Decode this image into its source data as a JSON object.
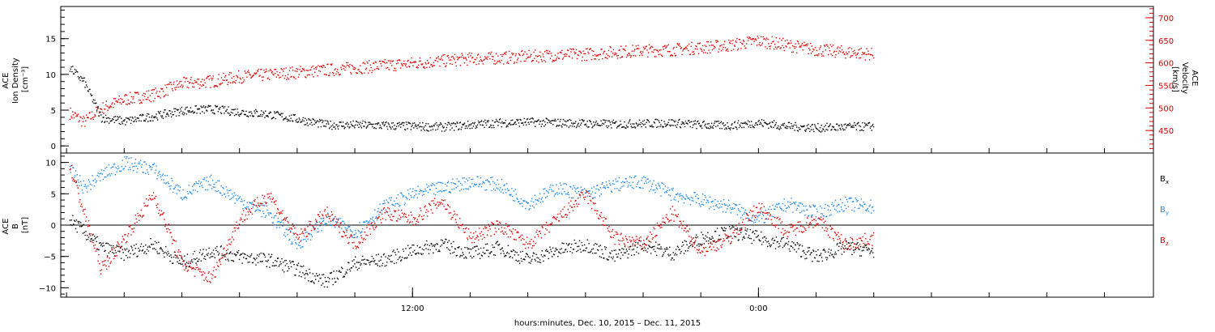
{
  "chart_data": [
    {
      "type": "scatter",
      "panel": "top",
      "left_axis": {
        "label_lines": [
          "ACE",
          "Ion Density",
          "[cm⁻³]"
        ],
        "range": [
          -1,
          19.5
        ],
        "major_ticks": [
          0,
          5,
          10,
          15
        ],
        "tick_labels": [
          "0",
          "5",
          "10",
          "15"
        ],
        "color": "#000000"
      },
      "right_axis": {
        "label_lines": [
          "ACE",
          "Velocity",
          "[km/s]"
        ],
        "range": [
          400,
          725
        ],
        "major_ticks": [
          450,
          500,
          550,
          600,
          650,
          700
        ],
        "tick_labels": [
          "450",
          "500",
          "550",
          "600",
          "650",
          "700"
        ],
        "color": "#dd0000"
      },
      "series": [
        {
          "axis": "left",
          "color": "#000000",
          "x_hours": [
            0.1,
            0.6,
            1.2,
            2.0,
            3.0,
            4.0,
            5.0,
            6.0,
            7.0,
            8.0,
            9.0,
            10.0,
            11.0,
            12.0,
            13.0,
            14.0,
            15.0,
            16.0,
            17.0,
            18.0,
            19.0,
            20.0,
            21.0,
            22.0,
            23.0,
            24.0,
            25.0,
            26.0,
            27.0,
            28.0
          ],
          "values": [
            11,
            9,
            4,
            3.5,
            4.2,
            5.0,
            5.2,
            4.8,
            4.5,
            3.8,
            3.0,
            3.0,
            2.9,
            2.8,
            2.7,
            3.0,
            3.3,
            3.4,
            3.3,
            3.2,
            3.1,
            3.2,
            3.3,
            3.0,
            2.9,
            3.3,
            2.8,
            2.6,
            2.7,
            2.8
          ]
        },
        {
          "axis": "right",
          "color": "#dd0000",
          "x_hours": [
            0.1,
            0.6,
            1.2,
            2.0,
            3.0,
            4.0,
            5.0,
            6.0,
            7.0,
            8.0,
            9.0,
            10.0,
            11.0,
            12.0,
            13.0,
            14.0,
            15.0,
            16.0,
            17.0,
            18.0,
            19.0,
            20.0,
            21.0,
            22.0,
            23.0,
            24.0,
            25.0,
            26.0,
            27.0,
            28.0
          ],
          "values": [
            490,
            470,
            500,
            520,
            530,
            555,
            560,
            570,
            575,
            580,
            585,
            590,
            595,
            600,
            605,
            610,
            612,
            615,
            618,
            620,
            625,
            628,
            630,
            635,
            640,
            650,
            640,
            630,
            625,
            620
          ]
        }
      ]
    },
    {
      "type": "scatter",
      "panel": "bottom",
      "left_axis": {
        "label_lines": [
          "ACE",
          "B",
          "[nT]"
        ],
        "range": [
          -11.5,
          11.5
        ],
        "major_ticks": [
          -10,
          -5,
          0,
          5,
          10
        ],
        "tick_labels": [
          "−10",
          "−5",
          "0",
          "5",
          "10"
        ],
        "color": "#000000"
      },
      "zero_line": true,
      "series": [
        {
          "name": "Bx",
          "color": "#000000",
          "x_hours": [
            0.1,
            0.6,
            1.2,
            2.0,
            3.0,
            4.0,
            5.0,
            6.0,
            7.0,
            8.0,
            9.0,
            10.0,
            11.0,
            12.0,
            13.0,
            14.0,
            15.0,
            16.0,
            17.0,
            18.0,
            19.0,
            20.0,
            21.0,
            22.0,
            23.0,
            24.0,
            25.0,
            26.0,
            27.0,
            28.0
          ],
          "values": [
            1,
            -1,
            -3.5,
            -4.5,
            -3,
            -6,
            -4,
            -5,
            -5.5,
            -7,
            -9,
            -6,
            -5.5,
            -4,
            -3,
            -4.5,
            -3.5,
            -5.5,
            -4,
            -3,
            -5,
            -3,
            -4.5,
            -2,
            -1,
            -2,
            -3,
            -5,
            -3.5,
            -4
          ]
        },
        {
          "name": "By",
          "color": "#1e88e5",
          "x_hours": [
            0.1,
            0.6,
            1.2,
            2.0,
            3.0,
            4.0,
            5.0,
            6.0,
            7.0,
            8.0,
            9.0,
            10.0,
            11.0,
            12.0,
            13.0,
            14.0,
            15.0,
            16.0,
            17.0,
            18.0,
            19.0,
            20.0,
            21.0,
            22.0,
            23.0,
            24.0,
            25.0,
            26.0,
            27.0,
            28.0
          ],
          "values": [
            9,
            6,
            8,
            10,
            9,
            5,
            7,
            4,
            2,
            -3,
            1,
            -1,
            3,
            5,
            6,
            7,
            6.5,
            3.5,
            6,
            5,
            6.5,
            7,
            5,
            4,
            3,
            1,
            3.5,
            2,
            3.5,
            3
          ]
        },
        {
          "name": "Bz",
          "color": "#dd0000",
          "x_hours": [
            0.1,
            0.6,
            1.2,
            2.0,
            3.0,
            4.0,
            5.0,
            6.0,
            7.0,
            8.0,
            9.0,
            10.0,
            11.0,
            12.0,
            13.0,
            14.0,
            15.0,
            16.0,
            17.0,
            18.0,
            19.0,
            20.0,
            21.0,
            22.0,
            23.0,
            24.0,
            25.0,
            26.0,
            27.0,
            28.0
          ],
          "values": [
            9.5,
            2,
            -7,
            -2,
            5,
            -6,
            -8.5,
            1,
            5,
            -2,
            2,
            -3,
            2,
            1,
            4,
            -2,
            0,
            -3,
            1,
            5,
            -2,
            -3,
            2,
            -4,
            -2,
            3,
            -1,
            1,
            -3,
            -2
          ]
        }
      ]
    }
  ],
  "x_axis": {
    "range_hours": [
      -0.2,
      37.7
    ],
    "major_ticks_hours": [
      12,
      24
    ],
    "tick_labels": [
      "12:00",
      "0:00"
    ],
    "minor_step_hours": 2,
    "title": "hours:minutes, Dec. 10, 2015 – Dec. 11, 2015"
  },
  "legend": {
    "labels": [
      "B",
      "B",
      "B"
    ],
    "subscripts": [
      "x",
      "y",
      "z"
    ],
    "colors": [
      "#000000",
      "#1e88e5",
      "#dd0000"
    ],
    "placement": "right"
  }
}
